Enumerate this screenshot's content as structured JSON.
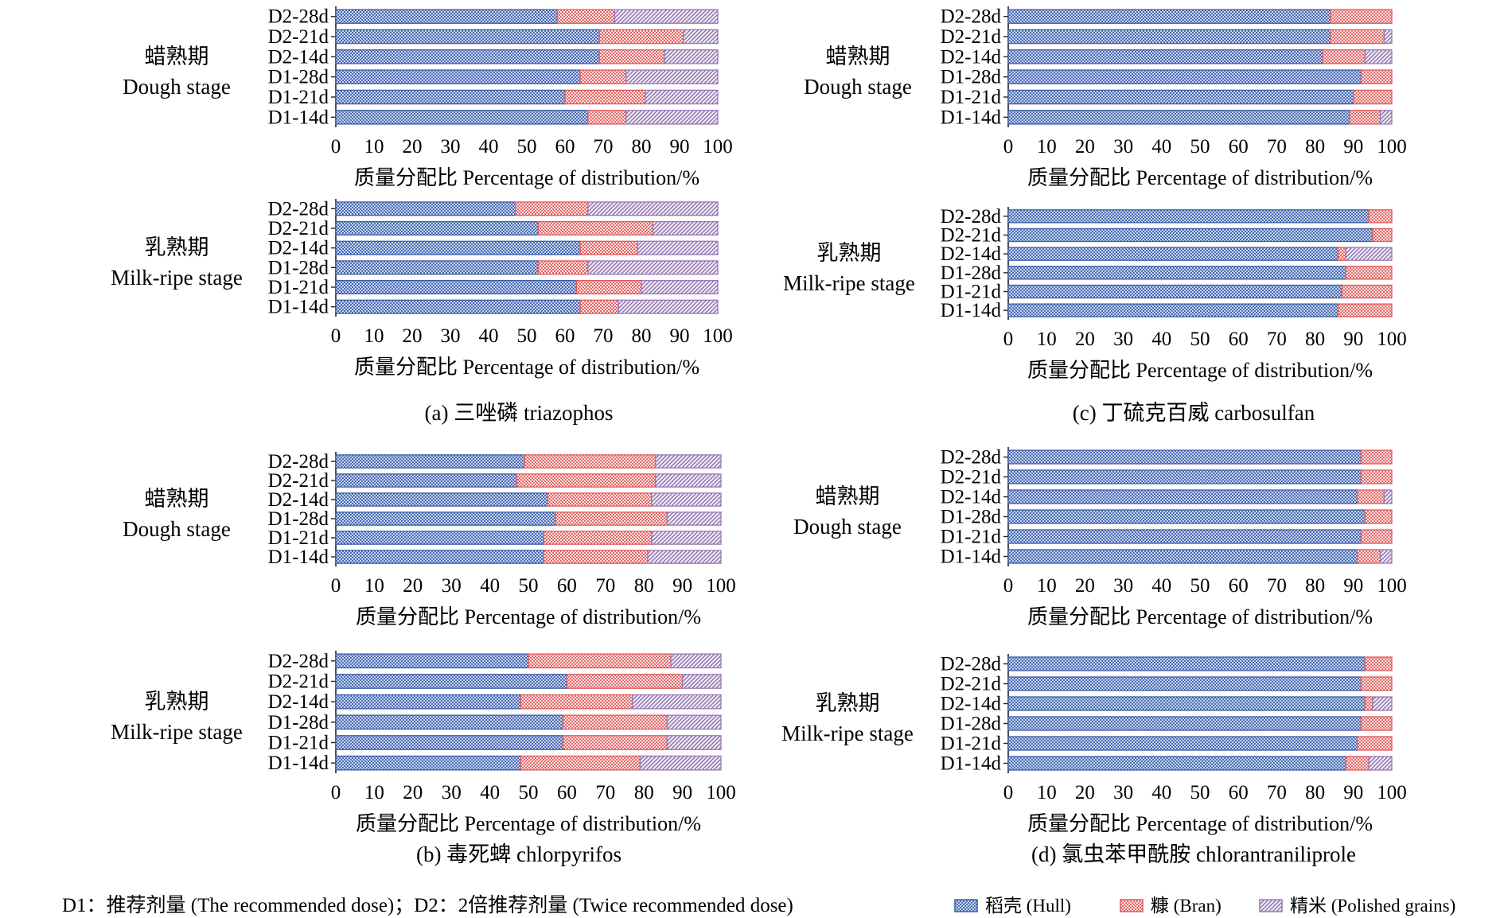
{
  "legend": {
    "note": "D1：推荐剂量 (The recommended dose)；D2：2倍推荐剂量 (Twice recommended dose)",
    "items": [
      {
        "label": "稻壳 (Hull)",
        "color": "#3a5ea8"
      },
      {
        "label": "糠 (Bran)",
        "color": "#e05a5a"
      },
      {
        "label": "精米 (Polished grains)",
        "color": "#9a78b4"
      }
    ]
  },
  "panels": [
    {
      "caption": "(a) 三唑磷 triazophos"
    },
    {
      "caption": "(b) 毒死蜱 chlorpyrifos"
    },
    {
      "caption": "(c) 丁硫克百威 carbosulfan"
    },
    {
      "caption": "(d) 氯虫苯甲酰胺 chlorantraniliprole"
    }
  ],
  "chart_data": [
    {
      "type": "bar",
      "orientation": "horizontal",
      "stacked": true,
      "panel": "(a) 三唑磷 triazophos",
      "stage_cn": "蜡熟期",
      "stage_en": "Dough stage",
      "categories": [
        "D2-28d",
        "D2-21d",
        "D2-14d",
        "D1-28d",
        "D1-21d",
        "D1-14d"
      ],
      "series": [
        {
          "name": "稻壳 (Hull)",
          "values": [
            58,
            69,
            69,
            64,
            60,
            66
          ]
        },
        {
          "name": "糠 (Bran)",
          "values": [
            15,
            22,
            17,
            12,
            21,
            10
          ]
        },
        {
          "name": "精米 (Polished grains)",
          "values": [
            27,
            9,
            14,
            24,
            19,
            24
          ]
        }
      ],
      "xlabel": "质量分配比 Percentage of distribution/%",
      "xticks": [
        "0",
        "10",
        "20",
        "30",
        "40",
        "50",
        "60",
        "70",
        "80",
        "90",
        "100"
      ],
      "xlim": [
        0,
        100
      ]
    },
    {
      "type": "bar",
      "orientation": "horizontal",
      "stacked": true,
      "panel": "(a) 三唑磷 triazophos",
      "stage_cn": "乳熟期",
      "stage_en": "Milk-ripe stage",
      "categories": [
        "D2-28d",
        "D2-21d",
        "D2-14d",
        "D1-28d",
        "D1-21d",
        "D1-14d"
      ],
      "series": [
        {
          "name": "稻壳 (Hull)",
          "values": [
            47,
            53,
            64,
            53,
            63,
            64
          ]
        },
        {
          "name": "糠 (Bran)",
          "values": [
            19,
            30,
            15,
            13,
            17,
            10
          ]
        },
        {
          "name": "精米 (Polished grains)",
          "values": [
            34,
            17,
            21,
            34,
            20,
            26
          ]
        }
      ],
      "xlabel": "质量分配比 Percentage of distribution/%",
      "xticks": [
        "0",
        "10",
        "20",
        "30",
        "40",
        "50",
        "60",
        "70",
        "80",
        "90",
        "100"
      ],
      "xlim": [
        0,
        100
      ]
    },
    {
      "type": "bar",
      "orientation": "horizontal",
      "stacked": true,
      "panel": "(b) 毒死蜱 chlorpyrifos",
      "stage_cn": "蜡熟期",
      "stage_en": "Dough stage",
      "categories": [
        "D2-28d",
        "D2-21d",
        "D2-14d",
        "D1-28d",
        "D1-21d",
        "D1-14d"
      ],
      "series": [
        {
          "name": "稻壳 (Hull)",
          "values": [
            49,
            47,
            55,
            57,
            54,
            54
          ]
        },
        {
          "name": "糠 (Bran)",
          "values": [
            34,
            36,
            27,
            29,
            28,
            27
          ]
        },
        {
          "name": "精米 (Polished grains)",
          "values": [
            17,
            17,
            18,
            14,
            18,
            19
          ]
        }
      ],
      "xlabel": "质量分配比 Percentage of distribution/%",
      "xticks": [
        "0",
        "10",
        "20",
        "30",
        "40",
        "50",
        "60",
        "70",
        "80",
        "90",
        "100"
      ],
      "xlim": [
        0,
        100
      ]
    },
    {
      "type": "bar",
      "orientation": "horizontal",
      "stacked": true,
      "panel": "(b) 毒死蜱 chlorpyrifos",
      "stage_cn": "乳熟期",
      "stage_en": "Milk-ripe stage",
      "categories": [
        "D2-28d",
        "D2-21d",
        "D2-14d",
        "D1-28d",
        "D1-21d",
        "D1-14d"
      ],
      "series": [
        {
          "name": "稻壳 (Hull)",
          "values": [
            50,
            60,
            48,
            59,
            59,
            48
          ]
        },
        {
          "name": "糠 (Bran)",
          "values": [
            37,
            30,
            29,
            27,
            27,
            31
          ]
        },
        {
          "name": "精米 (Polished grains)",
          "values": [
            13,
            10,
            23,
            14,
            14,
            21
          ]
        }
      ],
      "xlabel": "质量分配比 Percentage of distribution/%",
      "xticks": [
        "0",
        "10",
        "20",
        "30",
        "40",
        "50",
        "60",
        "70",
        "80",
        "90",
        "100"
      ],
      "xlim": [
        0,
        100
      ]
    },
    {
      "type": "bar",
      "orientation": "horizontal",
      "stacked": true,
      "panel": "(c) 丁硫克百威 carbosulfan",
      "stage_cn": "蜡熟期",
      "stage_en": "Dough stage",
      "categories": [
        "D2-28d",
        "D2-21d",
        "D2-14d",
        "D1-28d",
        "D1-21d",
        "D1-14d"
      ],
      "series": [
        {
          "name": "稻壳 (Hull)",
          "values": [
            84,
            84,
            82,
            92,
            90,
            89
          ]
        },
        {
          "name": "糠 (Bran)",
          "values": [
            16,
            14,
            11,
            8,
            10,
            8
          ]
        },
        {
          "name": "精米 (Polished grains)",
          "values": [
            0,
            2,
            7,
            0,
            0,
            3
          ]
        }
      ],
      "xlabel": "质量分配比 Percentage of distribution/%",
      "xticks": [
        "0",
        "10",
        "20",
        "30",
        "40",
        "50",
        "60",
        "70",
        "80",
        "90",
        "100"
      ],
      "xlim": [
        0,
        100
      ]
    },
    {
      "type": "bar",
      "orientation": "horizontal",
      "stacked": true,
      "panel": "(c) 丁硫克百威 carbosulfan",
      "stage_cn": "乳熟期",
      "stage_en": "Milk-ripe stage",
      "categories": [
        "D2-28d",
        "D2-21d",
        "D2-14d",
        "D1-28d",
        "D1-21d",
        "D1-14d"
      ],
      "series": [
        {
          "name": "稻壳 (Hull)",
          "values": [
            94,
            95,
            86,
            88,
            87,
            86
          ]
        },
        {
          "name": "糠 (Bran)",
          "values": [
            6,
            5,
            2,
            12,
            13,
            14
          ]
        },
        {
          "name": "精米 (Polished grains)",
          "values": [
            0,
            0,
            12,
            0,
            0,
            0
          ]
        }
      ],
      "xlabel": "质量分配比 Percentage of distribution/%",
      "xticks": [
        "0",
        "10",
        "20",
        "30",
        "40",
        "50",
        "60",
        "70",
        "80",
        "90",
        "100"
      ],
      "xlim": [
        0,
        100
      ]
    },
    {
      "type": "bar",
      "orientation": "horizontal",
      "stacked": true,
      "panel": "(d) 氯虫苯甲酰胺 chlorantraniliprole",
      "stage_cn": "蜡熟期",
      "stage_en": "Dough stage",
      "categories": [
        "D2-28d",
        "D2-21d",
        "D2-14d",
        "D1-28d",
        "D1-21d",
        "D1-14d"
      ],
      "series": [
        {
          "name": "稻壳 (Hull)",
          "values": [
            92,
            92,
            91,
            93,
            92,
            91
          ]
        },
        {
          "name": "糠 (Bran)",
          "values": [
            8,
            8,
            7,
            7,
            8,
            6
          ]
        },
        {
          "name": "精米 (Polished grains)",
          "values": [
            0,
            0,
            2,
            0,
            0,
            3
          ]
        }
      ],
      "xlabel": "质量分配比 Percentage of distribution/%",
      "xticks": [
        "0",
        "10",
        "20",
        "30",
        "40",
        "50",
        "60",
        "70",
        "80",
        "90",
        "100"
      ],
      "xlim": [
        0,
        100
      ]
    },
    {
      "type": "bar",
      "orientation": "horizontal",
      "stacked": true,
      "panel": "(d) 氯虫苯甲酰胺 chlorantraniliprole",
      "stage_cn": "乳熟期",
      "stage_en": "Milk-ripe stage",
      "categories": [
        "D2-28d",
        "D2-21d",
        "D2-14d",
        "D1-28d",
        "D1-21d",
        "D1-14d"
      ],
      "series": [
        {
          "name": "稻壳 (Hull)",
          "values": [
            93,
            92,
            93,
            92,
            91,
            88
          ]
        },
        {
          "name": "糠 (Bran)",
          "values": [
            7,
            8,
            2,
            8,
            9,
            6
          ]
        },
        {
          "name": "精米 (Polished grains)",
          "values": [
            0,
            0,
            5,
            0,
            0,
            6
          ]
        }
      ],
      "xlabel": "质量分配比 Percentage of distribution/%",
      "xticks": [
        "0",
        "10",
        "20",
        "30",
        "40",
        "50",
        "60",
        "70",
        "80",
        "90",
        "100"
      ],
      "xlim": [
        0,
        100
      ]
    }
  ]
}
